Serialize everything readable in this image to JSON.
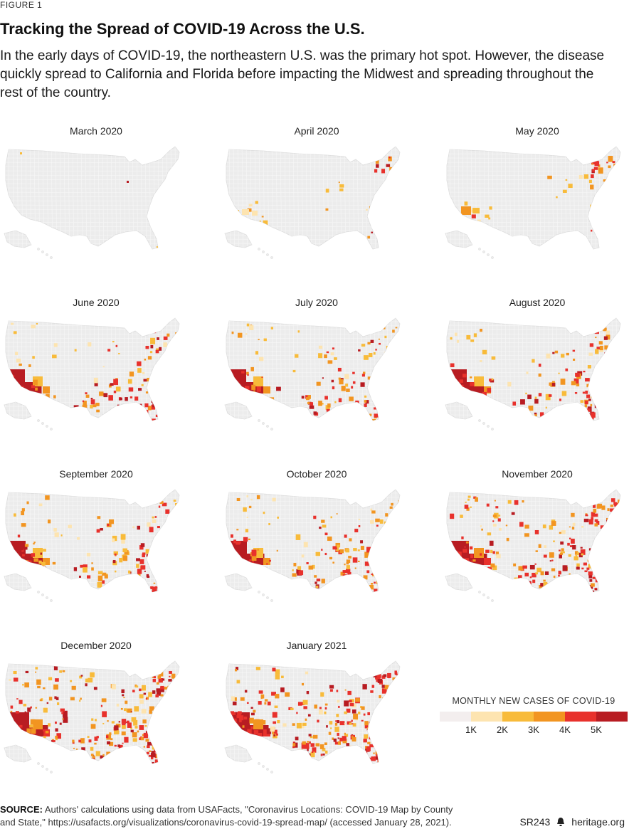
{
  "figure_label": "FIGURE 1",
  "title": "Tracking the Spread of COVID-19 Across the U.S.",
  "subtitle": "In the early days of COVID-19, the northeastern U.S. was the primary hot spot. However, the disease quickly spread to California and Florida before impacting the Midwest and spreading throughout the rest of the country.",
  "maps": [
    {
      "title": "March 2020",
      "level": 0
    },
    {
      "title": "April 2020",
      "level": 1
    },
    {
      "title": "May 2020",
      "level": 2
    },
    {
      "title": "June 2020",
      "level": 3
    },
    {
      "title": "July 2020",
      "level": 4
    },
    {
      "title": "August 2020",
      "level": 4
    },
    {
      "title": "September 2020",
      "level": 4
    },
    {
      "title": "October 2020",
      "level": 5
    },
    {
      "title": "November 2020",
      "level": 7
    },
    {
      "title": "December 2020",
      "level": 9
    },
    {
      "title": "January 2021",
      "level": 9
    }
  ],
  "legend": {
    "title": "MONTHLY NEW CASES OF COVID-19",
    "colors": [
      "#f3eeee",
      "#fde4b0",
      "#f8bb3a",
      "#f29521",
      "#e8312c",
      "#b81c22"
    ],
    "ticks": [
      "1K",
      "2K",
      "3K",
      "4K",
      "5K"
    ]
  },
  "source": {
    "label": "SOURCE:",
    "text": "Authors' calculations using data from USAFacts, \"Coronavirus Locations: COVID-19 Map by County and State,\" https://usafacts.org/visualizations/coronavirus-covid-19-spread-map/ (accessed January 28, 2021)."
  },
  "footer": {
    "code": "SR243",
    "site": "heritage.org"
  },
  "colors": {
    "base_county": "#ececec",
    "text": "#1a1a1a"
  }
}
